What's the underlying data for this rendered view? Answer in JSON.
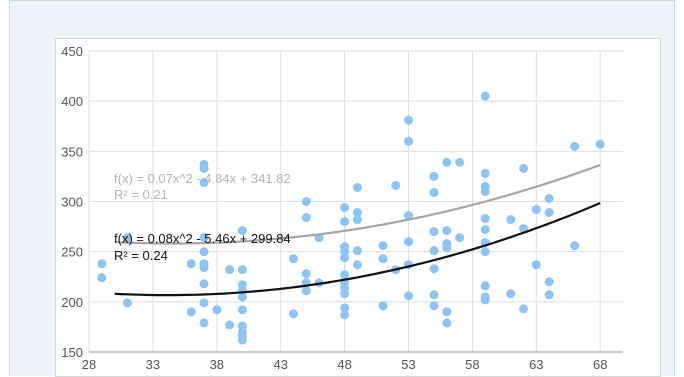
{
  "chart_data": {
    "type": "scatter",
    "title": "",
    "xlabel": "",
    "ylabel": "",
    "xlim": [
      28,
      69
    ],
    "ylim": [
      150,
      450
    ],
    "x_ticks": [
      28,
      33,
      38,
      43,
      48,
      53,
      58,
      63,
      68
    ],
    "y_ticks": [
      150,
      200,
      250,
      300,
      350,
      400,
      450
    ],
    "grid": true,
    "colors": {
      "points": "#8cc4f5",
      "trend_gray": "#a6a6a6",
      "trend_black": "#111111",
      "grid": "#dddddd"
    },
    "points": [
      [
        29,
        238
      ],
      [
        29,
        224
      ],
      [
        31,
        264
      ],
      [
        31,
        199
      ],
      [
        36,
        238
      ],
      [
        36,
        190
      ],
      [
        37,
        337
      ],
      [
        37,
        333
      ],
      [
        37,
        319
      ],
      [
        37,
        264
      ],
      [
        37,
        250
      ],
      [
        37,
        238
      ],
      [
        37,
        234
      ],
      [
        37,
        218
      ],
      [
        37,
        199
      ],
      [
        37,
        179
      ],
      [
        38,
        192
      ],
      [
        39,
        232
      ],
      [
        39,
        177
      ],
      [
        40,
        271
      ],
      [
        40,
        232
      ],
      [
        40,
        217
      ],
      [
        40,
        211
      ],
      [
        40,
        205
      ],
      [
        40,
        192
      ],
      [
        40,
        176
      ],
      [
        40,
        170
      ],
      [
        40,
        166
      ],
      [
        40,
        162
      ],
      [
        44,
        243
      ],
      [
        44,
        188
      ],
      [
        45,
        300
      ],
      [
        45,
        284
      ],
      [
        45,
        228
      ],
      [
        45,
        219
      ],
      [
        45,
        211
      ],
      [
        46,
        264
      ],
      [
        46,
        219
      ],
      [
        48,
        294
      ],
      [
        48,
        280
      ],
      [
        48,
        255
      ],
      [
        48,
        250
      ],
      [
        48,
        244
      ],
      [
        48,
        227
      ],
      [
        48,
        220
      ],
      [
        48,
        214
      ],
      [
        48,
        208
      ],
      [
        48,
        194
      ],
      [
        48,
        187
      ],
      [
        49,
        314
      ],
      [
        49,
        289
      ],
      [
        49,
        282
      ],
      [
        49,
        251
      ],
      [
        49,
        237
      ],
      [
        51,
        256
      ],
      [
        51,
        243
      ],
      [
        51,
        196
      ],
      [
        52,
        316
      ],
      [
        52,
        232
      ],
      [
        53,
        381
      ],
      [
        53,
        360
      ],
      [
        53,
        286
      ],
      [
        53,
        260
      ],
      [
        53,
        237
      ],
      [
        53,
        206
      ],
      [
        55,
        325
      ],
      [
        55,
        309
      ],
      [
        55,
        270
      ],
      [
        55,
        251
      ],
      [
        55,
        233
      ],
      [
        55,
        207
      ],
      [
        55,
        196
      ],
      [
        56,
        339
      ],
      [
        56,
        271
      ],
      [
        56,
        258
      ],
      [
        56,
        254
      ],
      [
        56,
        190
      ],
      [
        56,
        179
      ],
      [
        57,
        339
      ],
      [
        57,
        264
      ],
      [
        59,
        405
      ],
      [
        59,
        328
      ],
      [
        59,
        315
      ],
      [
        59,
        310
      ],
      [
        59,
        283
      ],
      [
        59,
        272
      ],
      [
        59,
        259
      ],
      [
        59,
        250
      ],
      [
        59,
        216
      ],
      [
        59,
        205
      ],
      [
        59,
        202
      ],
      [
        61,
        282
      ],
      [
        61,
        208
      ],
      [
        62,
        333
      ],
      [
        62,
        273
      ],
      [
        62,
        193
      ],
      [
        63,
        292
      ],
      [
        63,
        237
      ],
      [
        64,
        303
      ],
      [
        64,
        289
      ],
      [
        64,
        220
      ],
      [
        64,
        207
      ],
      [
        66,
        355
      ],
      [
        66,
        256
      ],
      [
        68,
        357
      ]
    ],
    "trendlines": [
      {
        "equation": "f(x) = 0.07x^2 - 4.84x + 341.82",
        "r2": "R² = 0.21",
        "a": 0.07,
        "b": -4.84,
        "c": 341.82,
        "color": "gray",
        "x_range": [
          30,
          68
        ]
      },
      {
        "equation": "f(x) = 0.08x^2 - 5.46x + 299.84",
        "r2": "R² = 0.24",
        "a": 0.08,
        "b": -5.46,
        "c": 299.84,
        "color": "black",
        "x_range": [
          30,
          68
        ]
      }
    ]
  }
}
